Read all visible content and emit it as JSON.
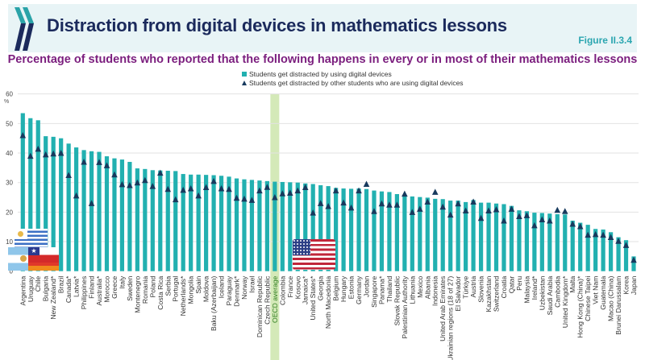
{
  "header": {
    "title": "Distraction from digital devices in mathematics lessons",
    "figure_number": "Figure II.3.4",
    "logo_icon": "oecd-chevron-logo"
  },
  "colors": {
    "bar": "#22b0b0",
    "triangle": "#173a5e",
    "highlight": "#d4e9b8",
    "title": "#1b2a5c",
    "subtitle": "#7b1e7e",
    "figure_number": "#2ba6b0"
  },
  "chart_data": {
    "type": "bar",
    "title": "Percentage of students who reported that the following happens in every or in most of their mathematics lessons",
    "ylabel": "%",
    "ylim": [
      0,
      60
    ],
    "yticks": [
      0,
      10,
      20,
      30,
      40,
      50,
      60
    ],
    "grid": true,
    "legend_position": "top-center",
    "highlighted_category": "OECD average",
    "categories": [
      "Argentina",
      "Uruguay",
      "Chile",
      "Bulgaria",
      "New Zealand*",
      "Brazil",
      "Canada*",
      "Latvia*",
      "Philippines",
      "Finland",
      "Australia*",
      "Morocco",
      "Greece",
      "Italy",
      "Sweden",
      "Montenegro",
      "Romania",
      "Poland",
      "Costa Rica",
      "Serbia",
      "Portugal",
      "Netherlands*",
      "Mongolia",
      "Spain",
      "Moldova",
      "Baku (Azerbaijan)",
      "Iceland",
      "Paraguay",
      "Denmark*",
      "Norway",
      "Israel",
      "Dominican Republic",
      "Czech Republic",
      "OECD average",
      "Colombia",
      "France",
      "Kosovo",
      "Jamaica*",
      "United States*",
      "Georgia",
      "North Macedonia",
      "Belgium",
      "Hungary",
      "Estonia",
      "Germany",
      "Jordan",
      "Singapore",
      "Panama*",
      "Thailand",
      "Slovak Republic",
      "Palestinian Authority",
      "Lithuania",
      "Mexico",
      "Albania",
      "Indonesia",
      "United Arab Emirates",
      "Ukrainian regions (18 of 27)",
      "El Salvador",
      "Türkiye",
      "Austria",
      "Slovenia",
      "Kazakhstan",
      "Switzerland",
      "Croatia",
      "Qatar",
      "Peru",
      "Malaysia",
      "Ireland*",
      "Uzbekistan",
      "Saudi Arabia",
      "Cambodia",
      "United Kingdom*",
      "Malta",
      "Hong Kong (China)*",
      "Chinese Taipei",
      "Viet Nam",
      "Guatemala",
      "Macao (China)",
      "Brunei Darussalam",
      "Korea",
      "Japan"
    ],
    "series": [
      {
        "name": "Students get distracted by using digital devices",
        "marker": "bar",
        "values": [
          53.5,
          51.8,
          51.1,
          45.7,
          45.5,
          45.0,
          43.2,
          41.9,
          41.0,
          40.6,
          40.4,
          38.9,
          38.2,
          37.8,
          37.0,
          34.8,
          34.6,
          34.2,
          34.1,
          34.0,
          33.9,
          32.9,
          32.7,
          32.7,
          32.6,
          32.5,
          32.3,
          32.0,
          31.4,
          31.1,
          30.9,
          30.7,
          30.5,
          30.3,
          30.2,
          30.1,
          30.0,
          29.7,
          29.5,
          29.1,
          28.8,
          28.2,
          28.0,
          27.9,
          28.0,
          27.8,
          27.3,
          27.0,
          26.8,
          26.1,
          25.7,
          25.3,
          25.1,
          24.9,
          24.5,
          24.4,
          23.9,
          23.9,
          23.4,
          24.1,
          23.2,
          23.2,
          22.9,
          22.7,
          22.1,
          20.6,
          20.3,
          19.8,
          19.7,
          19.5,
          19.3,
          19.2,
          17.1,
          16.4,
          15.7,
          14.3,
          14.1,
          13.2,
          11.5,
          10.5,
          5.0
        ]
      },
      {
        "name": "Students get distracted by other students who are using digital devices",
        "marker": "triangle",
        "values": [
          46.0,
          39.0,
          41.4,
          39.5,
          39.8,
          40.0,
          32.5,
          25.6,
          37.0,
          23.0,
          36.9,
          35.8,
          32.7,
          29.4,
          29.1,
          30.0,
          30.8,
          28.8,
          33.3,
          27.8,
          24.3,
          27.5,
          28.0,
          25.6,
          28.4,
          30.5,
          28.0,
          27.8,
          24.8,
          24.5,
          24.1,
          27.3,
          28.5,
          25.0,
          26.3,
          26.5,
          27.3,
          28.4,
          19.8,
          23.0,
          22.0,
          27.3,
          23.2,
          21.5,
          27.3,
          29.5,
          20.3,
          22.9,
          22.5,
          22.5,
          26.2,
          20.0,
          21.1,
          23.5,
          26.8,
          21.8,
          19.1,
          22.9,
          20.5,
          23.5,
          18.0,
          20.5,
          20.9,
          17.1,
          21.1,
          18.6,
          18.9,
          15.5,
          17.5,
          17.1,
          20.7,
          20.3,
          16.0,
          15.2,
          12.3,
          12.5,
          12.3,
          11.5,
          10.2,
          8.8,
          3.8
        ]
      }
    ]
  },
  "flags": [
    {
      "country": "Uruguay",
      "icon": "uruguay-flag"
    },
    {
      "country": "Argentina",
      "icon": "argentina-flag"
    },
    {
      "country": "Chile",
      "icon": "chile-flag"
    },
    {
      "country": "United States",
      "icon": "us-flag"
    }
  ]
}
